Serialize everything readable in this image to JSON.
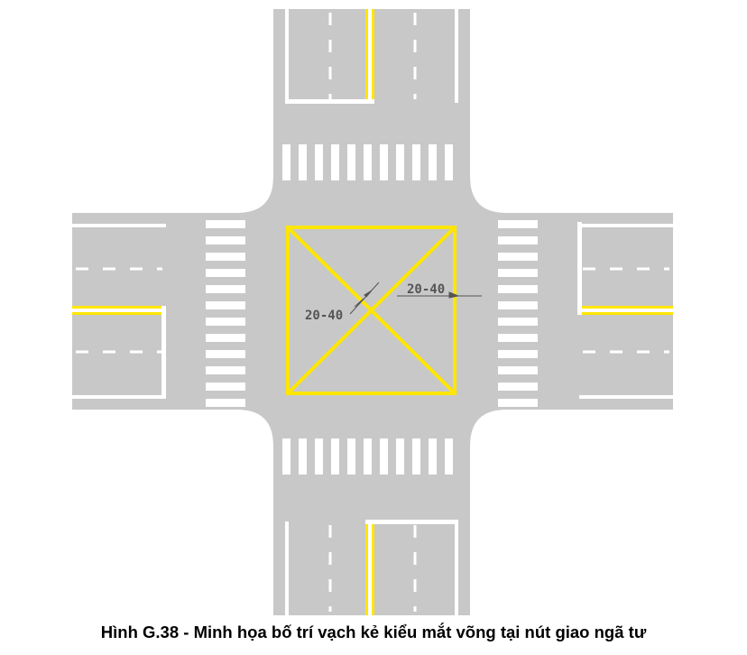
{
  "caption": "Hình G.38 - Minh họa bố trí vạch kẻ kiểu mắt võng tại nút giao ngã tư",
  "annotations": {
    "dim_left": "20-40",
    "dim_right": "20-40"
  },
  "colors": {
    "road": "#c8c8c8",
    "white_marking": "#ffffff",
    "yellow_marking": "#ffe600",
    "dimension": "#555555"
  }
}
